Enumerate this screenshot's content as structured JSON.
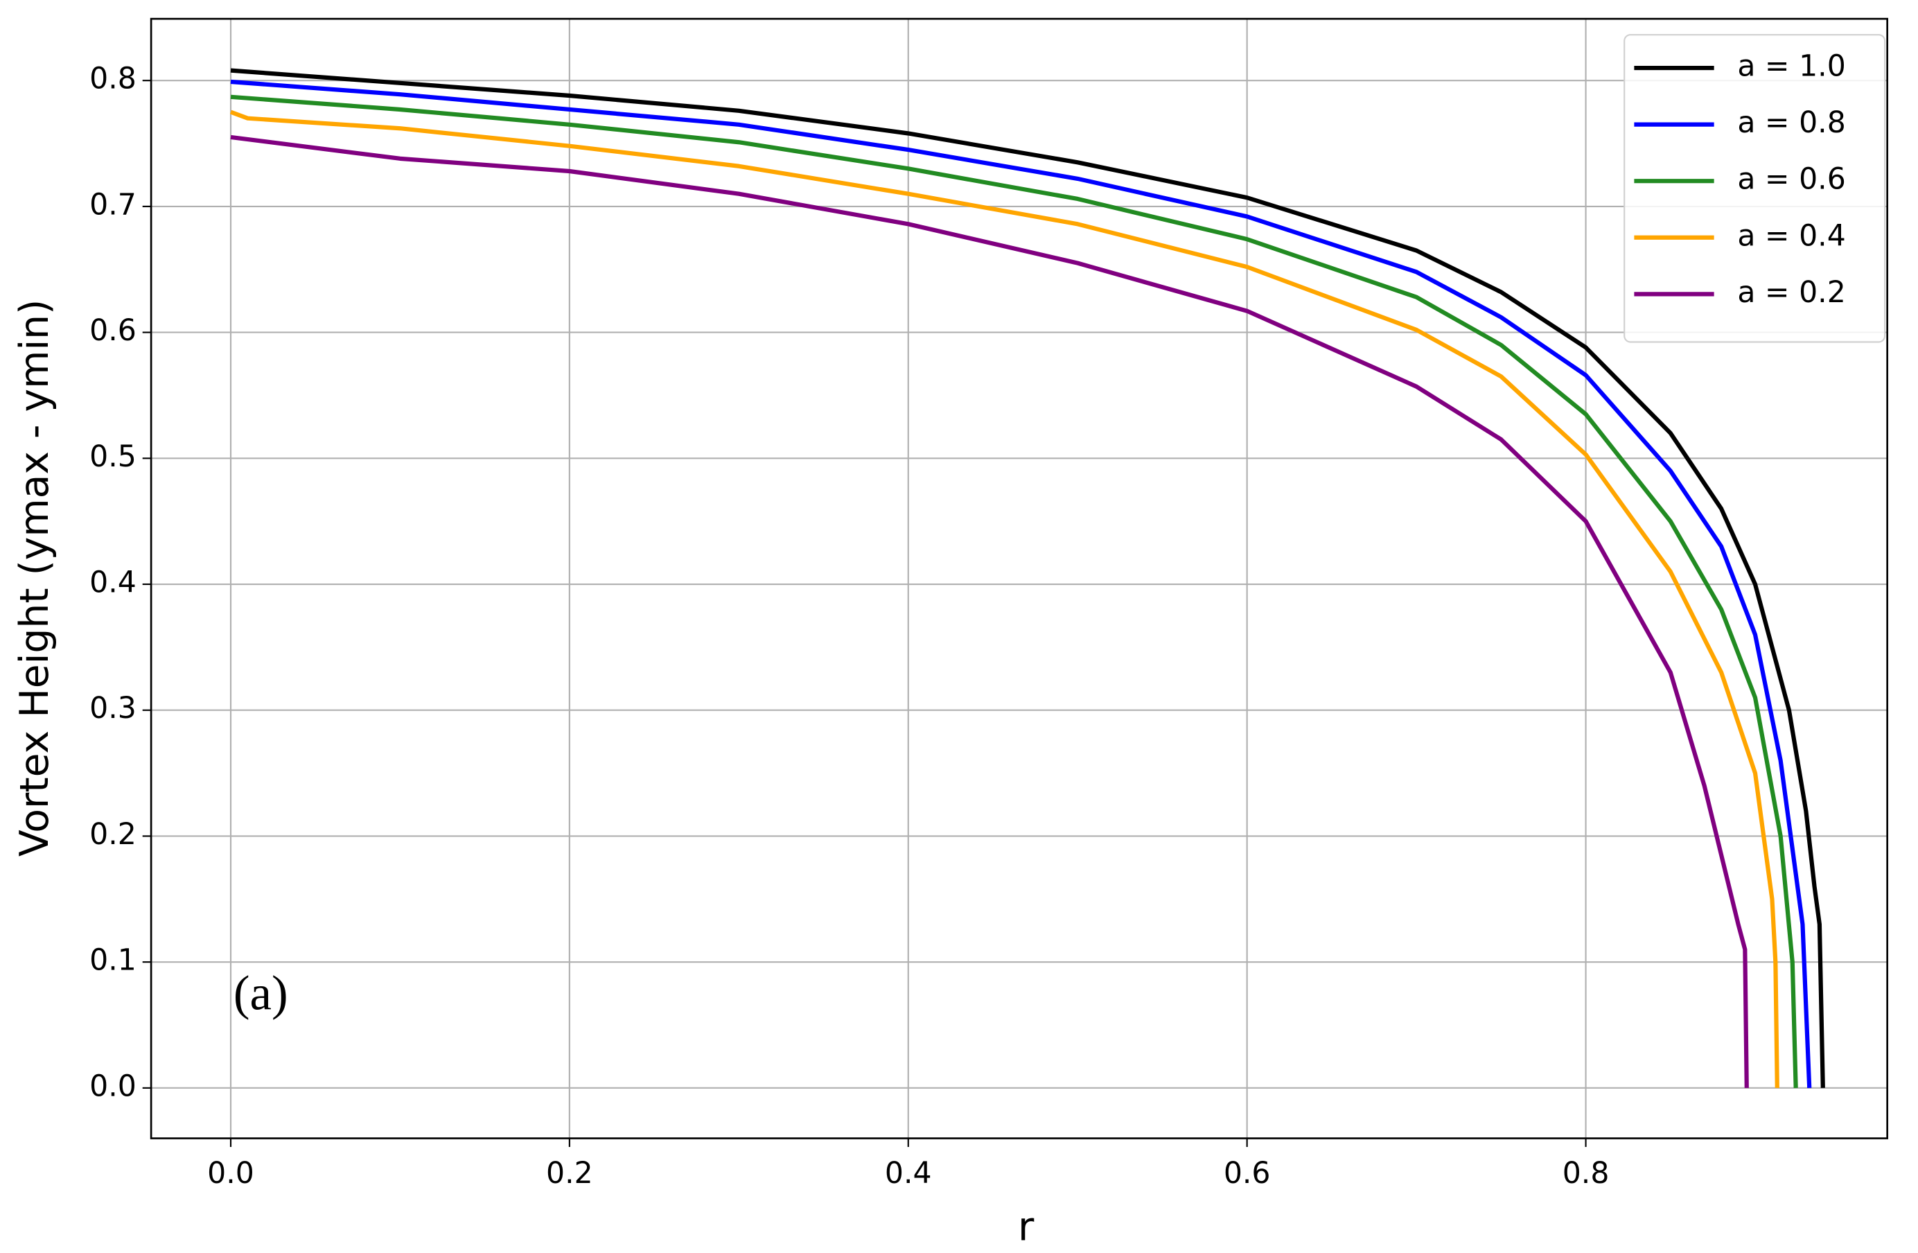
{
  "chart_data": {
    "type": "line",
    "xlabel": "r",
    "ylabel": "Vortex Height (ymax - ymin)",
    "annotation": "(a)",
    "grid": true,
    "legend": "upper right",
    "xlim": [
      -0.047,
      0.978
    ],
    "ylim": [
      -0.04,
      0.849
    ],
    "xticks": [
      {
        "value": 0,
        "label": "0.0"
      },
      0.2,
      0.4,
      0.6,
      0.8
    ],
    "yticks": [
      {
        "value": 0,
        "label": "0.0"
      },
      0.1,
      0.2,
      0.3,
      0.4,
      0.5,
      0.6,
      0.7,
      0.8
    ],
    "series": [
      {
        "name": "a = 1.0",
        "color": "#000000",
        "x": [
          0,
          0.1,
          0.2,
          0.3,
          0.4,
          0.5,
          0.6,
          0.7,
          0.75,
          0.8,
          0.85,
          0.88,
          0.9,
          0.92,
          0.93,
          0.935,
          0.938,
          0.94
        ],
        "values": [
          0.808,
          0.798,
          0.788,
          0.776,
          0.758,
          0.735,
          0.707,
          0.665,
          0.632,
          0.588,
          0.52,
          0.46,
          0.4,
          0.3,
          0.22,
          0.16,
          0.13,
          0
        ]
      },
      {
        "name": "a = 0.8",
        "color": "#0000ff",
        "x": [
          0,
          0.1,
          0.2,
          0.3,
          0.4,
          0.5,
          0.6,
          0.7,
          0.75,
          0.8,
          0.85,
          0.88,
          0.9,
          0.915,
          0.928,
          0.932
        ],
        "values": [
          0.799,
          0.789,
          0.777,
          0.765,
          0.745,
          0.722,
          0.692,
          0.648,
          0.612,
          0.566,
          0.49,
          0.43,
          0.36,
          0.26,
          0.13,
          0
        ]
      },
      {
        "name": "a = 0.6",
        "color": "#228b22",
        "x": [
          0,
          0.1,
          0.2,
          0.3,
          0.4,
          0.5,
          0.6,
          0.7,
          0.75,
          0.8,
          0.85,
          0.88,
          0.9,
          0.915,
          0.922,
          0.924
        ],
        "values": [
          0.787,
          0.777,
          0.765,
          0.751,
          0.73,
          0.706,
          0.674,
          0.628,
          0.59,
          0.535,
          0.45,
          0.38,
          0.31,
          0.2,
          0.1,
          0
        ]
      },
      {
        "name": "a = 0.4",
        "color": "#ffa500",
        "x": [
          0,
          0.01,
          0.1,
          0.2,
          0.3,
          0.4,
          0.5,
          0.6,
          0.7,
          0.75,
          0.8,
          0.85,
          0.88,
          0.9,
          0.91,
          0.912,
          0.913
        ],
        "values": [
          0.775,
          0.77,
          0.762,
          0.748,
          0.732,
          0.71,
          0.686,
          0.652,
          0.602,
          0.565,
          0.503,
          0.41,
          0.33,
          0.25,
          0.15,
          0.1,
          0
        ]
      },
      {
        "name": "a = 0.2",
        "color": "#800080",
        "x": [
          0,
          0.1,
          0.2,
          0.3,
          0.4,
          0.5,
          0.6,
          0.7,
          0.75,
          0.8,
          0.85,
          0.87,
          0.89,
          0.894,
          0.895
        ],
        "values": [
          0.755,
          0.738,
          0.728,
          0.71,
          0.686,
          0.655,
          0.617,
          0.557,
          0.515,
          0.45,
          0.33,
          0.24,
          0.13,
          0.11,
          0
        ]
      }
    ]
  }
}
